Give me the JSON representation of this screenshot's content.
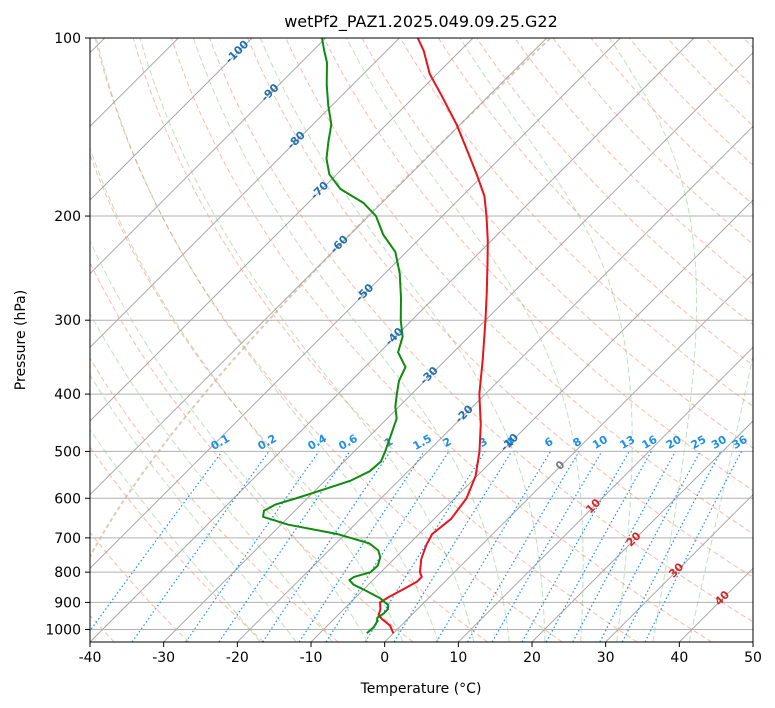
{
  "chart_data": {
    "type": "line",
    "diagram": "skew-t log-p",
    "title": "wetPf2_PAZ1.2025.049.09.25.G22",
    "xlabel": "Temperature (°C)",
    "ylabel": "Pressure (hPa)",
    "xlim": [
      -40,
      50
    ],
    "ylim": [
      1050,
      100
    ],
    "y_scale": "log",
    "grid": true,
    "x_ticks": [
      -40,
      -30,
      -20,
      -10,
      0,
      10,
      20,
      30,
      40,
      50
    ],
    "y_ticks": [
      100,
      200,
      300,
      400,
      500,
      600,
      700,
      800,
      900,
      1000
    ],
    "series": [
      {
        "key": "temperature",
        "color": "#e8141b",
        "points": [
          [
            1015,
            0.0
          ],
          [
            985,
            -1.5
          ],
          [
            960,
            -3.5
          ],
          [
            945,
            -4.5
          ],
          [
            925,
            -5.0
          ],
          [
            900,
            -6.0
          ],
          [
            880,
            -5.5
          ],
          [
            860,
            -4.8
          ],
          [
            845,
            -4.3
          ],
          [
            830,
            -3.8
          ],
          [
            815,
            -3.8
          ],
          [
            800,
            -4.7
          ],
          [
            760,
            -6.3
          ],
          [
            720,
            -7.5
          ],
          [
            690,
            -8.2
          ],
          [
            650,
            -7.7
          ],
          [
            600,
            -8.4
          ],
          [
            550,
            -10.2
          ],
          [
            500,
            -13.0
          ],
          [
            450,
            -16.5
          ],
          [
            400,
            -20.8
          ],
          [
            350,
            -25.0
          ],
          [
            300,
            -30.0
          ],
          [
            270,
            -33.5
          ],
          [
            240,
            -37.5
          ],
          [
            220,
            -40.5
          ],
          [
            200,
            -44.0
          ],
          [
            185,
            -47.0
          ],
          [
            170,
            -51.0
          ],
          [
            155,
            -55.5
          ],
          [
            140,
            -60.5
          ],
          [
            125,
            -66.5
          ],
          [
            115,
            -71.0
          ],
          [
            105,
            -75.0
          ],
          [
            100,
            -77.5
          ]
        ]
      },
      {
        "key": "dewpoint",
        "color": "#0e8a0e",
        "points": [
          [
            1015,
            -3.6
          ],
          [
            990,
            -3.5
          ],
          [
            970,
            -3.8
          ],
          [
            955,
            -4.3
          ],
          [
            940,
            -4.0
          ],
          [
            925,
            -4.0
          ],
          [
            910,
            -4.5
          ],
          [
            885,
            -6.6
          ],
          [
            860,
            -9.5
          ],
          [
            840,
            -12.0
          ],
          [
            825,
            -13.2
          ],
          [
            815,
            -13.0
          ],
          [
            800,
            -11.4
          ],
          [
            780,
            -11.3
          ],
          [
            755,
            -12.1
          ],
          [
            735,
            -13.3
          ],
          [
            715,
            -15.5
          ],
          [
            690,
            -21.0
          ],
          [
            665,
            -29.0
          ],
          [
            645,
            -33.5
          ],
          [
            630,
            -34.2
          ],
          [
            615,
            -33.5
          ],
          [
            600,
            -31.5
          ],
          [
            580,
            -29.0
          ],
          [
            560,
            -26.5
          ],
          [
            540,
            -25.2
          ],
          [
            520,
            -25.0
          ],
          [
            500,
            -25.8
          ],
          [
            470,
            -27.2
          ],
          [
            440,
            -28.7
          ],
          [
            420,
            -30.5
          ],
          [
            400,
            -32.0
          ],
          [
            380,
            -33.5
          ],
          [
            360,
            -34.5
          ],
          [
            340,
            -37.5
          ],
          [
            320,
            -39.0
          ],
          [
            300,
            -41.5
          ],
          [
            275,
            -44.5
          ],
          [
            250,
            -48.0
          ],
          [
            230,
            -51.5
          ],
          [
            215,
            -55.5
          ],
          [
            200,
            -59.0
          ],
          [
            190,
            -62.5
          ],
          [
            180,
            -67.5
          ],
          [
            170,
            -71.0
          ],
          [
            160,
            -73.5
          ],
          [
            150,
            -75.5
          ],
          [
            140,
            -77.5
          ],
          [
            130,
            -80.5
          ],
          [
            120,
            -83.5
          ],
          [
            110,
            -86.5
          ],
          [
            105,
            -88.5
          ],
          [
            100,
            -90.5
          ]
        ]
      }
    ],
    "isotherm_labels": [
      "-100",
      "-90",
      "-80",
      "-70",
      "-60",
      "-50",
      "-40",
      "-30",
      "-20",
      "-10",
      "0",
      "10",
      "20",
      "30",
      "40"
    ],
    "isotherm_label_colors": {
      "cold": "#1f6fb0",
      "zero": "#7a7a7a",
      "warm": "#d62728"
    },
    "mixing_ratio_labels": [
      "0.1",
      "0.2",
      "0.4",
      "0.6",
      "1",
      "1.5",
      "2",
      "3",
      "4",
      "6",
      "8",
      "10",
      "13",
      "16",
      "20",
      "25",
      "30",
      "36"
    ],
    "mixing_ratio_color": "#1f8fe6",
    "dry_adiabat_color": "#f47a5c",
    "moist_adiabat_color": "#4aa64a"
  }
}
